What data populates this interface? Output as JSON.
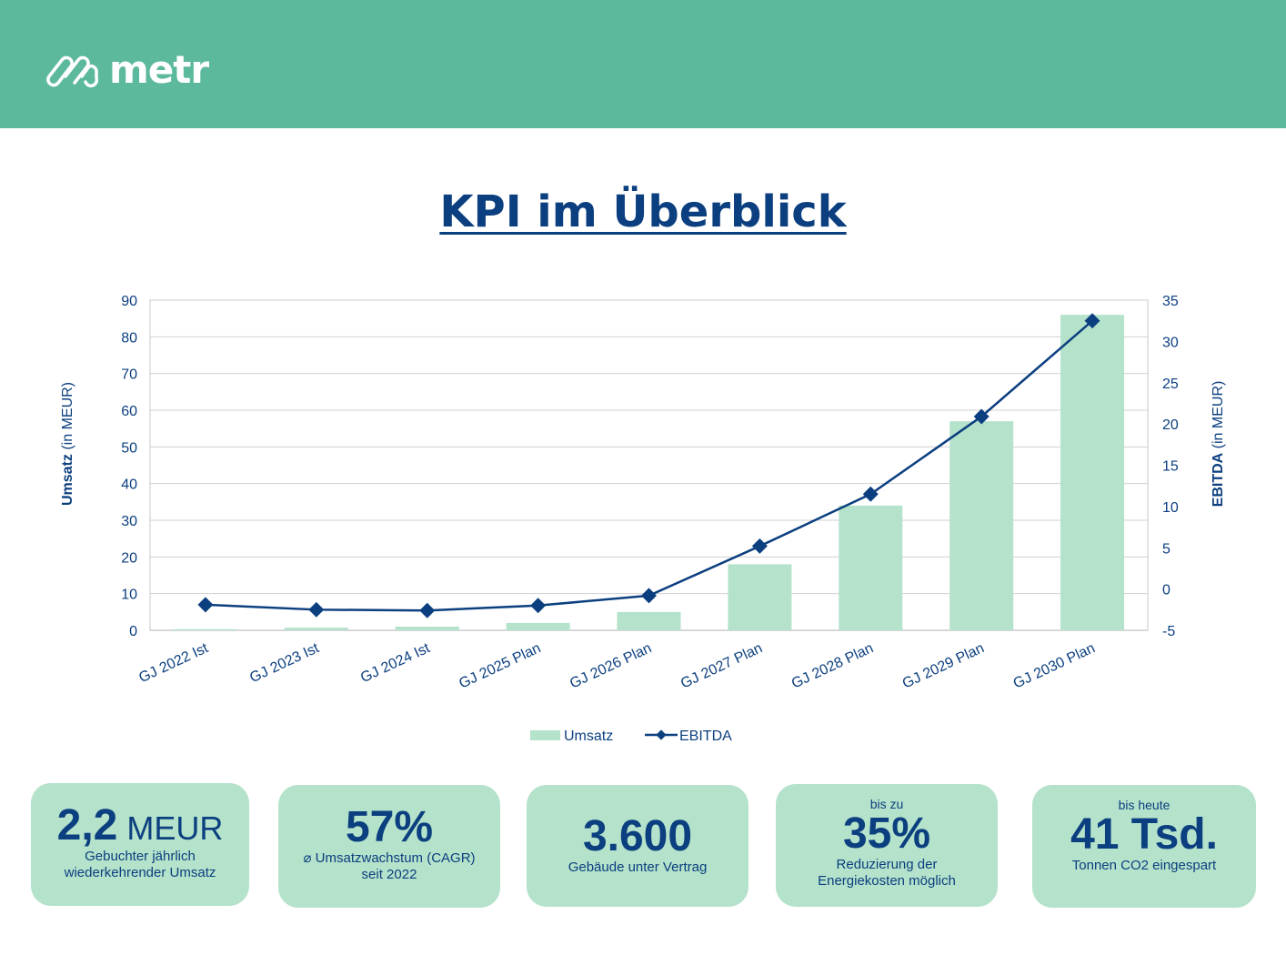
{
  "header": {
    "logo_text": "metr",
    "background": "#5cb99e"
  },
  "title": "KPI im Überblick",
  "chart_data": {
    "type": "bar+line",
    "categories": [
      "GJ 2022 Ist",
      "GJ 2023 Ist",
      "GJ 2024 Ist",
      "GJ 2025 Plan",
      "GJ 2026 Plan",
      "GJ 2027 Plan",
      "GJ 2028 Plan",
      "GJ 2029 Plan",
      "GJ 2030 Plan"
    ],
    "series": [
      {
        "name": "Umsatz",
        "type": "bar",
        "axis": "left",
        "color": "#b5e2cb",
        "values": [
          0.3,
          0.7,
          1.0,
          2.0,
          5.0,
          18,
          34,
          57,
          86
        ]
      },
      {
        "name": "EBITDA",
        "type": "line",
        "axis": "right",
        "marker": "diamond",
        "color": "#0b3f7f",
        "values": [
          -1.9,
          -2.5,
          -2.6,
          -2.0,
          -0.8,
          5.2,
          11.5,
          20.9,
          32.5
        ]
      }
    ],
    "ylabel_bold": "Umsatz",
    "ylabel_rest": " (in MEUR)",
    "y2label_bold": "EBITDA",
    "y2label_rest": " (in MEUR)",
    "ylim": [
      0,
      90
    ],
    "yticks": [
      0,
      10,
      20,
      30,
      40,
      50,
      60,
      70,
      80,
      90
    ],
    "y2lim": [
      -5,
      35
    ],
    "y2ticks": [
      -5,
      0,
      5,
      10,
      15,
      20,
      25,
      30,
      35
    ],
    "grid": true,
    "legend": "bottom"
  },
  "cards": [
    {
      "pre": "",
      "big": "2,2",
      "unit": " MEUR",
      "desc": [
        "Gebuchter jährlich",
        "wiederkehrender Umsatz"
      ]
    },
    {
      "pre": "",
      "big": "57%",
      "unit": "",
      "desc": [
        "⌀ Umsatzwachstum (CAGR)",
        "seit 2022"
      ]
    },
    {
      "pre": "",
      "big": "3.600",
      "unit": "",
      "desc": [
        "Gebäude unter Vertrag",
        ""
      ]
    },
    {
      "pre": "bis zu",
      "big": "35%",
      "unit": "",
      "desc": [
        "Reduzierung der",
        "Energiekosten möglich"
      ]
    },
    {
      "pre": "bis heute",
      "big": "41 Tsd.",
      "unit": "",
      "desc": [
        "Tonnen CO2 eingespart",
        ""
      ]
    }
  ]
}
